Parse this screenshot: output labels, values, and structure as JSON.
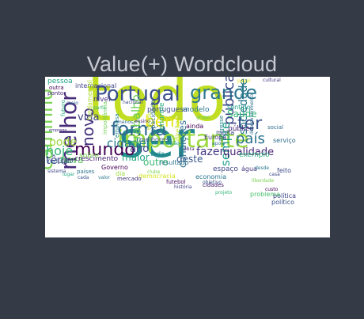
{
  "chart_data": {
    "type": "wordcloud",
    "title": "Value(+) Wordcloud",
    "background": "#ffffff",
    "colormap": "viridis",
    "words": [
      {
        "text": "todo",
        "rank": 1,
        "color": "#c2de23"
      },
      {
        "text": "ser",
        "rank": 2,
        "color": "#23898e"
      },
      {
        "text": "importante",
        "rank": 3,
        "color": "#9bd93c"
      },
      {
        "text": "Portugal",
        "rank": 4,
        "color": "#3b518b"
      },
      {
        "text": "grande",
        "rank": 5,
        "color": "#2a788e"
      },
      {
        "text": "melhor",
        "rank": 6,
        "color": "#472c7a"
      },
      {
        "text": "caminho",
        "rank": 7,
        "color": "#7ad151"
      },
      {
        "text": "forma",
        "rank": 8,
        "color": "#31688e"
      },
      {
        "text": "mundo",
        "rank": 9,
        "color": "#440154"
      },
      {
        "text": "novo",
        "rank": 10,
        "color": "#46327e"
      },
      {
        "text": "bem",
        "rank": 11,
        "color": "#e5e419"
      },
      {
        "text": "ter",
        "rank": 12,
        "color": "#39568c"
      },
      {
        "text": "país",
        "rank": 13,
        "color": "#2c728e"
      },
      {
        "text": "pública",
        "rank": 14,
        "color": "#3e4989"
      },
      {
        "text": "cidade",
        "rank": 15,
        "color": "#26828e"
      },
      {
        "text": "hoje",
        "rank": 16,
        "color": "#35b779"
      },
      {
        "text": "pode",
        "rank": 17,
        "color": "#9bd93c"
      },
      {
        "text": "vida",
        "rank": 18,
        "color": "#414487"
      },
      {
        "text": "sempre",
        "rank": 19,
        "color": "#1f9e89"
      },
      {
        "text": "sociedade",
        "rank": 20,
        "color": "#2a788e"
      },
      {
        "text": "trabalho",
        "rank": 21,
        "color": "#6ece58"
      },
      {
        "text": "fazer",
        "rank": 22,
        "color": "#443983"
      },
      {
        "text": "qualidade",
        "rank": 23,
        "color": "#482475"
      },
      {
        "text": "têm",
        "rank": 24,
        "color": "#3b518b"
      },
      {
        "text": "ano",
        "rank": 25,
        "color": "#3f4788"
      },
      {
        "text": "Saúde",
        "rank": 26,
        "color": "#35b779"
      },
      {
        "text": "nova",
        "rank": 27,
        "color": "#5ec962"
      },
      {
        "text": "condições",
        "rank": 28,
        "color": "#2d708e"
      },
      {
        "text": "maior",
        "rank": 29,
        "color": "#22a884"
      },
      {
        "text": "outro",
        "rank": 30,
        "color": "#3dbc74"
      },
      {
        "text": "deste",
        "rank": 31,
        "color": "#38598c"
      },
      {
        "text": "crescimento",
        "rank": 32,
        "color": "#481f70"
      },
      {
        "text": "pessoa",
        "rank": 33,
        "color": "#20a486"
      },
      {
        "text": "internacional",
        "rank": 34,
        "color": "#414487"
      },
      {
        "text": "fundamental",
        "rank": 35,
        "color": "#addc30"
      },
      {
        "text": "portuguesa",
        "rank": 36,
        "color": "#3e4c8a"
      },
      {
        "text": "modelo",
        "rank": 37,
        "color": "#2a788e"
      },
      {
        "text": "espaço",
        "rank": 38,
        "color": "#404688"
      },
      {
        "text": "Europa",
        "rank": 39,
        "color": "#443a83"
      },
      {
        "text": "exemplo",
        "rank": 40,
        "color": "#2db27d"
      },
      {
        "text": "redução",
        "rank": 41,
        "color": "#3a548c"
      },
      {
        "text": "sobre",
        "rank": 42,
        "color": "#7ad151"
      },
      {
        "text": "Governo",
        "rank": 43,
        "color": "#440154"
      },
      {
        "text": "resultado",
        "rank": 44,
        "color": "#2c728e"
      },
      {
        "text": "enorme",
        "rank": 45,
        "color": "#29af7f"
      },
      {
        "text": "capacidade",
        "rank": 46,
        "color": "#31688e"
      },
      {
        "text": "direitos",
        "rank": 47,
        "color": "#bddf26"
      },
      {
        "text": "economia",
        "rank": 48,
        "color": "#2a768e"
      },
      {
        "text": "democracia",
        "rank": 49,
        "color": "#d2e21b"
      },
      {
        "text": "político",
        "rank": 50,
        "color": "#3b528b"
      },
      {
        "text": "público",
        "rank": 51,
        "color": "#482677"
      },
      {
        "text": "social",
        "rank": 52,
        "color": "#2e6f8e"
      },
      {
        "text": "interesse",
        "rank": 53,
        "color": "#277f8e"
      },
      {
        "text": "água",
        "rank": 54,
        "color": "#453781"
      },
      {
        "text": "serviço",
        "rank": 55,
        "color": "#2f6b8e"
      },
      {
        "text": "política",
        "rank": 56,
        "color": "#404588"
      },
      {
        "text": "problema",
        "rank": 57,
        "color": "#4ac16d"
      },
      {
        "text": "feito",
        "rank": 58,
        "color": "#3e4a89"
      },
      {
        "text": "nível",
        "rank": 59,
        "color": "#46307e"
      },
      {
        "text": "importância",
        "rank": 60,
        "color": "#73d056"
      },
      {
        "text": "empresa",
        "rank": 61,
        "color": "#24868e"
      },
      {
        "text": "muita",
        "rank": 62,
        "color": "#3f4889"
      },
      {
        "text": "ainda",
        "rank": 63,
        "color": "#440154"
      },
      {
        "text": "sentido",
        "rank": 64,
        "color": "#1fa088"
      },
      {
        "text": "papel",
        "rank": 65,
        "color": "#e5e419"
      },
      {
        "text": "cidades",
        "rank": 66,
        "color": "#482071"
      },
      {
        "text": "toda",
        "rank": 67,
        "color": "#23898e"
      },
      {
        "text": "melhores",
        "rank": 68,
        "color": "#38588c"
      },
      {
        "text": "mercado",
        "rank": 69,
        "color": "#44377a"
      },
      {
        "text": "futebol",
        "rank": 70,
        "color": "#471063"
      },
      {
        "text": "dia",
        "rank": 71,
        "color": "#9bd93c"
      },
      {
        "text": "países",
        "rank": 72,
        "color": "#2c718e"
      },
      {
        "text": "sistema",
        "rank": 73,
        "color": "#3e4989"
      },
      {
        "text": "outra",
        "rank": 74,
        "color": "#440154"
      },
      {
        "text": "ponto",
        "rank": 75,
        "color": "#482878"
      },
      {
        "text": "meio",
        "rank": 76,
        "color": "#31688e"
      },
      {
        "text": "parte",
        "rank": 77,
        "color": "#35b779"
      },
      {
        "text": "desde",
        "rank": 78,
        "color": "#2a788e"
      },
      {
        "text": "cultural",
        "rank": 79,
        "color": "#443983"
      },
      {
        "text": "futuro",
        "rank": 80,
        "color": "#27ad81"
      },
      {
        "text": "nacional",
        "rank": 81,
        "color": "#3f4889"
      },
      {
        "text": "grupo",
        "rank": 82,
        "color": "#5ec962"
      },
      {
        "text": "ensino",
        "rank": 83,
        "color": "#482475"
      },
      {
        "text": "cada",
        "rank": 84,
        "color": "#39568c"
      },
      {
        "text": "região",
        "rank": 85,
        "color": "#20a386"
      },
      {
        "text": "liberdade",
        "rank": 86,
        "color": "#7ad151"
      },
      {
        "text": "desenvolvimento",
        "rank": 87,
        "color": "#2c728e"
      },
      {
        "text": "emprego",
        "rank": 88,
        "color": "#46317e"
      },
      {
        "text": "tempo",
        "rank": 89,
        "color": "#b5de2b"
      },
      {
        "text": "apoio",
        "rank": 90,
        "color": "#2a788e"
      },
      {
        "text": "casa",
        "rank": 91,
        "color": "#3e4a89"
      },
      {
        "text": "obra",
        "rank": 92,
        "color": "#482677"
      },
      {
        "text": "menos",
        "rank": 93,
        "color": "#31688e"
      },
      {
        "text": "lugar",
        "rank": 94,
        "color": "#22a884"
      },
      {
        "text": "história",
        "rank": 95,
        "color": "#414487"
      },
      {
        "text": "projeto",
        "rank": 96,
        "color": "#35b779"
      },
      {
        "text": "objetivo",
        "rank": 97,
        "color": "#3b528b"
      },
      {
        "text": "clube",
        "rank": 98,
        "color": "#7ad151"
      },
      {
        "text": "valor",
        "rank": 99,
        "color": "#2a788e"
      },
      {
        "text": "custo",
        "rank": 100,
        "color": "#440154"
      }
    ]
  }
}
